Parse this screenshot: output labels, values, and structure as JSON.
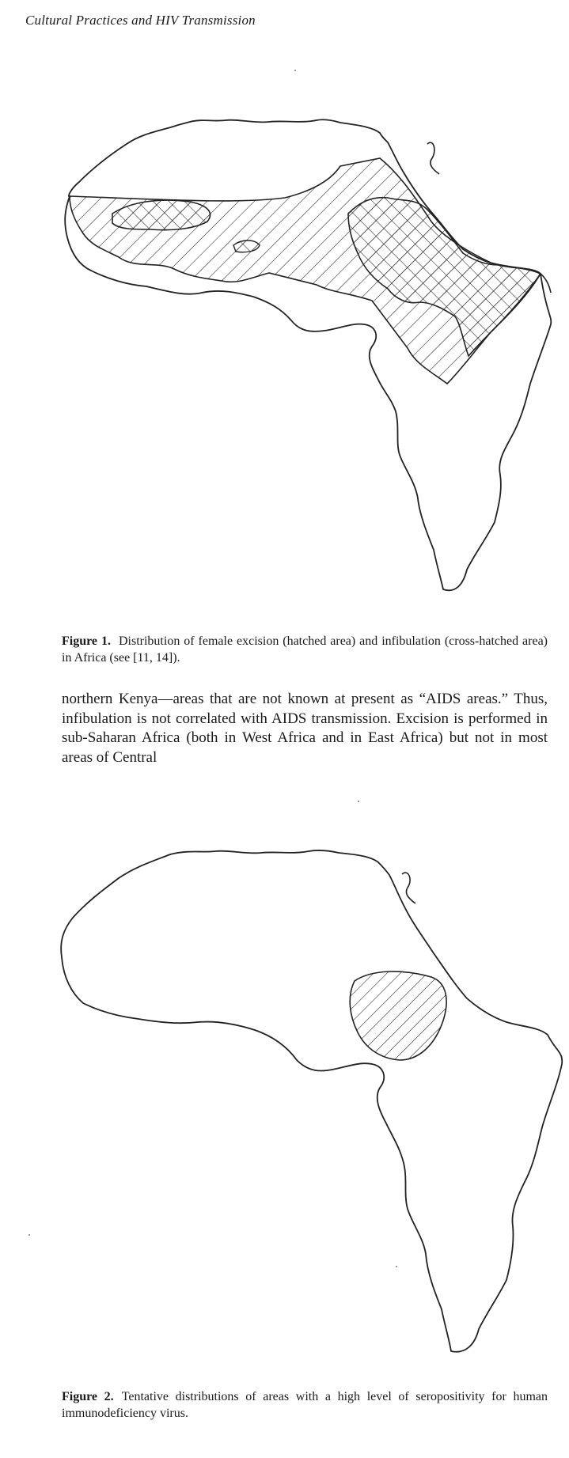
{
  "running_head": "Cultural Practices and HIV Transmission",
  "figure1": {
    "label": "Figure 1.",
    "caption": "Distribution of female excision (hatched area) and infibulation (cross-hatched area) in Africa (see [11, 14])."
  },
  "body_text": "northern Kenya—areas that are not known at present as “AIDS areas.” Thus, infibulation is not correlated with AIDS transmission. Excision is performed in sub-Saharan Africa (both in West Africa and in East Africa) but not in most areas of Central",
  "figure2": {
    "label": "Figure 2.",
    "caption": "Tentative distributions of areas with a high level of seropositivity for human immunodeficiency virus."
  },
  "maps": {
    "figure1_legend": {
      "hatched": "female excision",
      "cross_hatched": "infibulation"
    },
    "figure2_legend": {
      "hatched": "high level of seropositivity for HIV"
    }
  }
}
